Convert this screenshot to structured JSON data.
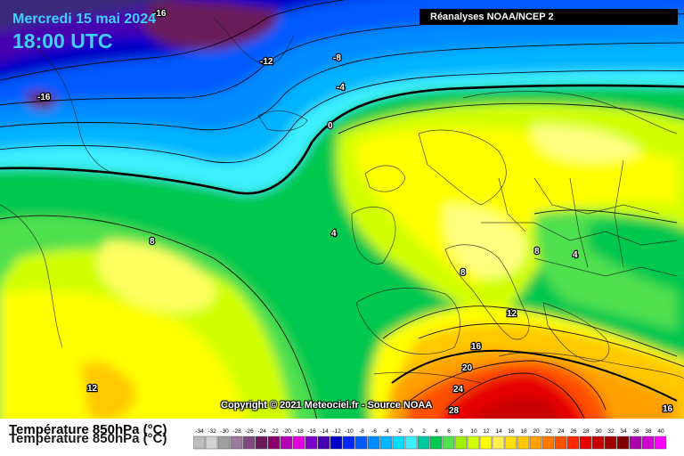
{
  "header": {
    "date": "Mercredi 15 mai 2024",
    "time": "18:00 UTC",
    "source": "Réanalyses NOAA/NCEP 2"
  },
  "copyright": "Copyright © 2021 Meteociel.fr - Source NOAA",
  "legend": {
    "title": "Température 850hPa (°C)",
    "values": [
      "-34",
      "-32",
      "-30",
      "-28",
      "-26",
      "-24",
      "-22",
      "-20",
      "-18",
      "-16",
      "-14",
      "-12",
      "-10",
      "-8",
      "-6",
      "-4",
      "-2",
      "0",
      "2",
      "4",
      "6",
      "8",
      "10",
      "12",
      "14",
      "16",
      "18",
      "20",
      "22",
      "24",
      "26",
      "28",
      "30",
      "32",
      "34",
      "36",
      "38",
      "40"
    ],
    "colors": [
      "#bdbdbd",
      "#d2d2d2",
      "#a0a0a0",
      "#9c7b9c",
      "#7e4a7e",
      "#6a1a5a",
      "#8a006a",
      "#b400b4",
      "#e000e0",
      "#7c00c8",
      "#4600b0",
      "#0000c8",
      "#0028ff",
      "#005aff",
      "#008cff",
      "#00b4ff",
      "#00dcff",
      "#3cf0ff",
      "#00c8a0",
      "#00c850",
      "#50e050",
      "#a0f000",
      "#d2ff00",
      "#ffff00",
      "#fff050",
      "#ffe000",
      "#ffc800",
      "#ffa000",
      "#ff7800",
      "#ff5000",
      "#ff2800",
      "#e60000",
      "#c80000",
      "#a00000",
      "#800000",
      "#aa00aa",
      "#d200d2",
      "#ff00ff"
    ]
  },
  "isotherm_labels": [
    "-16",
    "-16",
    "-12",
    "-8",
    "-4",
    "0",
    "4",
    "8",
    "8",
    "4",
    "8",
    "12",
    "12",
    "16",
    "20",
    "24",
    "28",
    "16"
  ]
}
